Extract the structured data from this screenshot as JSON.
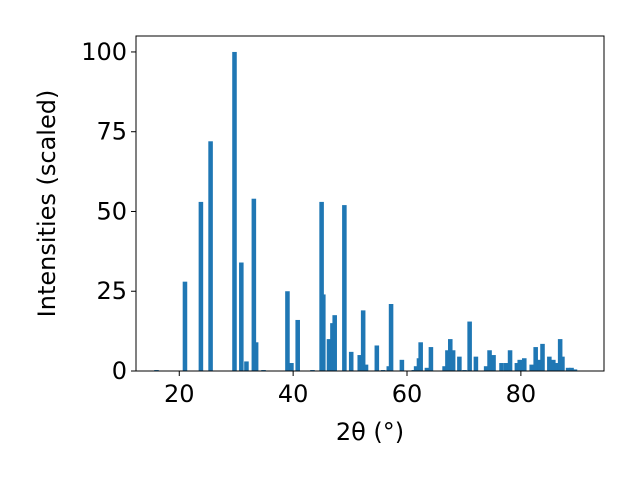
{
  "chart_data": {
    "type": "bar",
    "xlabel": "2θ (°)",
    "ylabel": "Intensities (scaled)",
    "title": "",
    "xlim": [
      12.4,
      94.6
    ],
    "ylim": [
      0,
      105
    ],
    "xticks": [
      20,
      40,
      60,
      80
    ],
    "yticks": [
      0,
      25,
      50,
      75,
      100
    ],
    "grid": false,
    "bar_color": "#1f77b4",
    "bar_width": 0.8,
    "x": [
      16.0,
      21.0,
      23.8,
      25.5,
      29.7,
      30.9,
      31.8,
      33.1,
      33.5,
      34.8,
      39.0,
      39.7,
      40.8,
      43.4,
      45.0,
      45.3,
      46.3,
      46.9,
      47.3,
      49.0,
      50.2,
      51.7,
      52.3,
      52.8,
      54.7,
      55.8,
      56.8,
      57.2,
      59.1,
      61.2,
      61.6,
      62.1,
      62.4,
      63.5,
      64.2,
      66.6,
      67.1,
      67.6,
      68.1,
      69.2,
      70.1,
      71.0,
      72.1,
      73.9,
      74.5,
      75.2,
      76.6,
      77.4,
      77.7,
      78.1,
      79.3,
      79.8,
      80.6,
      81.9,
      82.6,
      83.3,
      83.8,
      85.0,
      85.7,
      86.3,
      86.9,
      87.3,
      88.3,
      88.9,
      89.5
    ],
    "values": [
      0.3,
      28,
      53,
      72,
      100,
      34,
      3,
      54,
      9,
      0.3,
      25,
      2.5,
      16,
      0.3,
      53,
      24,
      10,
      15,
      17.5,
      52,
      6,
      5,
      19,
      2,
      8,
      0.3,
      1.5,
      21,
      3.5,
      0.3,
      1.5,
      4,
      9,
      1,
      7.5,
      1.5,
      6.5,
      10,
      6.5,
      4.5,
      0.3,
      15.5,
      4.5,
      1.5,
      6.5,
      5,
      2.5,
      2.5,
      2,
      6.5,
      2.5,
      3.5,
      4,
      2,
      7.5,
      3.5,
      8.5,
      4.5,
      3.5,
      2.5,
      10,
      4.5,
      1,
      1,
      0.5
    ]
  }
}
